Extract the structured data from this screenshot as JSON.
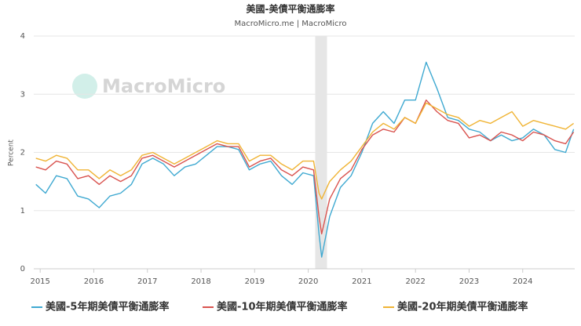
{
  "chart_data": {
    "type": "line",
    "title": "美國-美債平衡通膨率",
    "subtitle": "MacroMicro.me | MacroMicro",
    "watermark": "MacroMicro",
    "y_label": "Percent",
    "x": [
      2014.92,
      2015.1,
      2015.3,
      2015.5,
      2015.7,
      2015.9,
      2016.1,
      2016.3,
      2016.5,
      2016.7,
      2016.9,
      2017.1,
      2017.3,
      2017.5,
      2017.7,
      2017.9,
      2018.1,
      2018.3,
      2018.5,
      2018.7,
      2018.9,
      2019.1,
      2019.3,
      2019.5,
      2019.7,
      2019.9,
      2020.1,
      2020.2,
      2020.25,
      2020.4,
      2020.6,
      2020.8,
      2021.0,
      2021.2,
      2021.4,
      2021.6,
      2021.8,
      2022.0,
      2022.2,
      2022.4,
      2022.6,
      2022.8,
      2023.0,
      2023.2,
      2023.4,
      2023.6,
      2023.8,
      2024.0,
      2024.2,
      2024.4,
      2024.6,
      2024.8,
      2024.95
    ],
    "series": [
      {
        "name": "美國-5年期美債平衡通膨率",
        "color": "#3fa9d1",
        "values": [
          1.45,
          1.3,
          1.6,
          1.55,
          1.25,
          1.2,
          1.05,
          1.25,
          1.3,
          1.45,
          1.8,
          1.9,
          1.8,
          1.6,
          1.75,
          1.8,
          1.95,
          2.1,
          2.1,
          2.05,
          1.7,
          1.8,
          1.85,
          1.6,
          1.45,
          1.65,
          1.6,
          0.6,
          0.2,
          0.9,
          1.4,
          1.6,
          2.0,
          2.5,
          2.7,
          2.5,
          2.9,
          2.9,
          3.55,
          3.1,
          2.6,
          2.55,
          2.4,
          2.35,
          2.2,
          2.3,
          2.2,
          2.25,
          2.4,
          2.3,
          2.05,
          2.0,
          2.4
        ]
      },
      {
        "name": "美國-10年期美債平衡通膨率",
        "color": "#d9534f",
        "values": [
          1.75,
          1.7,
          1.85,
          1.8,
          1.55,
          1.6,
          1.45,
          1.6,
          1.5,
          1.6,
          1.9,
          1.95,
          1.85,
          1.75,
          1.85,
          1.95,
          2.05,
          2.15,
          2.1,
          2.1,
          1.75,
          1.85,
          1.9,
          1.7,
          1.6,
          1.75,
          1.7,
          0.9,
          0.6,
          1.2,
          1.55,
          1.7,
          2.05,
          2.3,
          2.4,
          2.35,
          2.6,
          2.5,
          2.9,
          2.7,
          2.55,
          2.5,
          2.25,
          2.3,
          2.2,
          2.35,
          2.3,
          2.2,
          2.35,
          2.3,
          2.2,
          2.15,
          2.35
        ]
      },
      {
        "name": "美國-20年期美債平衡通膨率",
        "color": "#f0b435",
        "values": [
          1.9,
          1.85,
          1.95,
          1.9,
          1.7,
          1.7,
          1.55,
          1.7,
          1.6,
          1.7,
          1.95,
          2.0,
          1.9,
          1.8,
          1.9,
          2.0,
          2.1,
          2.2,
          2.15,
          2.15,
          1.85,
          1.95,
          1.95,
          1.8,
          1.7,
          1.85,
          1.85,
          1.3,
          1.2,
          1.5,
          1.7,
          1.85,
          2.1,
          2.35,
          2.5,
          2.4,
          2.6,
          2.5,
          2.85,
          2.75,
          2.65,
          2.6,
          2.45,
          2.55,
          2.5,
          2.6,
          2.7,
          2.45,
          2.55,
          2.5,
          2.45,
          2.4,
          2.5
        ]
      }
    ],
    "shaded_range": [
      2020.13,
      2020.35
    ],
    "xlim": [
      2014.88,
      2024.97
    ],
    "xticks": [
      2015,
      2016,
      2017,
      2018,
      2019,
      2020,
      2021,
      2022,
      2023,
      2024
    ],
    "ylim": [
      0,
      4
    ],
    "yticks": [
      0,
      1,
      2,
      3,
      4
    ],
    "grid": true,
    "legend": "bottom"
  }
}
